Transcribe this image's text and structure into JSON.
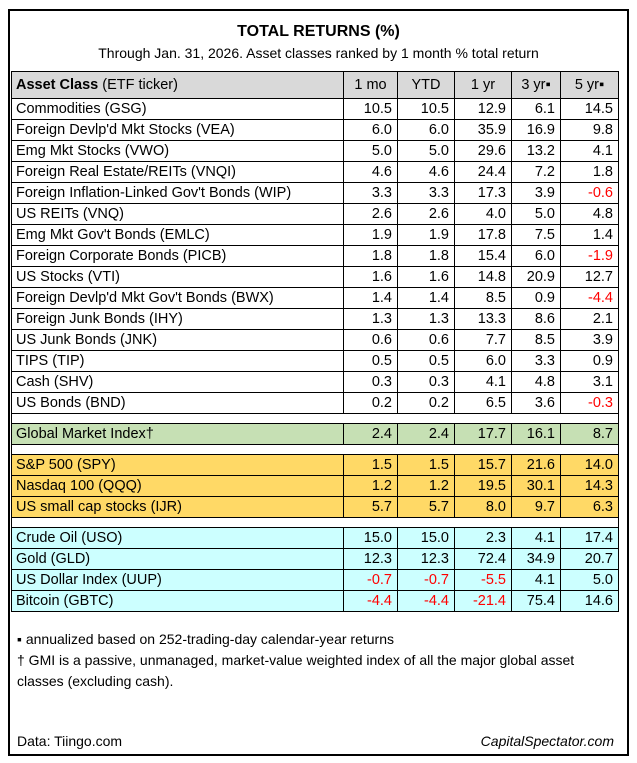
{
  "title": "TOTAL RETURNS (%)",
  "subtitle": "Through Jan. 31, 2026. Asset classes ranked by 1 month % total return",
  "chart_data": {
    "type": "table",
    "title": "TOTAL RETURNS (%)",
    "subtitle": "Through Jan. 31, 2026. Asset classes ranked by 1 month % total return",
    "asset_header": {
      "bold": "Asset Class",
      "rest": " (ETF ticker)"
    },
    "columns": [
      "1 mo",
      "YTD",
      "1 yr",
      "3 yr▪",
      "5 yr▪"
    ],
    "sections": [
      {
        "name": "ranked-asset-classes",
        "bg": "#ffffff",
        "rows": [
          {
            "label": "Commodities (GSG)",
            "values": [
              "10.5",
              "10.5",
              "12.9",
              "6.1",
              "14.5"
            ]
          },
          {
            "label": "Foreign Devlp'd Mkt Stocks (VEA)",
            "values": [
              "6.0",
              "6.0",
              "35.9",
              "16.9",
              "9.8"
            ]
          },
          {
            "label": "Emg Mkt Stocks (VWO)",
            "values": [
              "5.0",
              "5.0",
              "29.6",
              "13.2",
              "4.1"
            ]
          },
          {
            "label": "Foreign Real Estate/REITs (VNQI)",
            "values": [
              "4.6",
              "4.6",
              "24.4",
              "7.2",
              "1.8"
            ]
          },
          {
            "label": "Foreign Inflation-Linked Gov't Bonds (WIP)",
            "values": [
              "3.3",
              "3.3",
              "17.3",
              "3.9",
              "-0.6"
            ]
          },
          {
            "label": "US REITs (VNQ)",
            "values": [
              "2.6",
              "2.6",
              "4.0",
              "5.0",
              "4.8"
            ]
          },
          {
            "label": "Emg Mkt Gov't Bonds (EMLC)",
            "values": [
              "1.9",
              "1.9",
              "17.8",
              "7.5",
              "1.4"
            ]
          },
          {
            "label": "Foreign Corporate Bonds (PICB)",
            "values": [
              "1.8",
              "1.8",
              "15.4",
              "6.0",
              "-1.9"
            ]
          },
          {
            "label": "US Stocks (VTI)",
            "values": [
              "1.6",
              "1.6",
              "14.8",
              "20.9",
              "12.7"
            ]
          },
          {
            "label": "Foreign Devlp'd Mkt Gov't Bonds (BWX)",
            "values": [
              "1.4",
              "1.4",
              "8.5",
              "0.9",
              "-4.4"
            ]
          },
          {
            "label": "Foreign Junk Bonds (IHY)",
            "values": [
              "1.3",
              "1.3",
              "13.3",
              "8.6",
              "2.1"
            ]
          },
          {
            "label": "US Junk Bonds (JNK)",
            "values": [
              "0.6",
              "0.6",
              "7.7",
              "8.5",
              "3.9"
            ]
          },
          {
            "label": "TIPS (TIP)",
            "values": [
              "0.5",
              "0.5",
              "6.0",
              "3.3",
              "0.9"
            ]
          },
          {
            "label": "Cash (SHV)",
            "values": [
              "0.3",
              "0.3",
              "4.1",
              "4.8",
              "3.1"
            ]
          },
          {
            "label": "US Bonds (BND)",
            "values": [
              "0.2",
              "0.2",
              "6.5",
              "3.6",
              "-0.3"
            ]
          }
        ]
      },
      {
        "name": "global-market-index",
        "bg": "#c6e0b4",
        "rows": [
          {
            "label": "Global Market Index†",
            "values": [
              "2.4",
              "2.4",
              "17.7",
              "16.1",
              "8.7"
            ]
          }
        ]
      },
      {
        "name": "us-equity-benchmarks",
        "bg": "#ffd966",
        "rows": [
          {
            "label": "S&P 500 (SPY)",
            "values": [
              "1.5",
              "1.5",
              "15.7",
              "21.6",
              "14.0"
            ]
          },
          {
            "label": "Nasdaq 100 (QQQ)",
            "values": [
              "1.2",
              "1.2",
              "19.5",
              "30.1",
              "14.3"
            ]
          },
          {
            "label": "US small cap stocks (IJR)",
            "values": [
              "5.7",
              "5.7",
              "8.0",
              "9.7",
              "6.3"
            ]
          }
        ]
      },
      {
        "name": "alternatives",
        "bg": "#ccffff",
        "rows": [
          {
            "label": "Crude Oil (USO)",
            "values": [
              "15.0",
              "15.0",
              "2.3",
              "4.1",
              "17.4"
            ]
          },
          {
            "label": "Gold (GLD)",
            "values": [
              "12.3",
              "12.3",
              "72.4",
              "34.9",
              "20.7"
            ]
          },
          {
            "label": "US Dollar Index (UUP)",
            "values": [
              "-0.7",
              "-0.7",
              "-5.5",
              "4.1",
              "5.0"
            ]
          },
          {
            "label": "Bitcoin (GBTC)",
            "values": [
              "-4.4",
              "-4.4",
              "-21.4",
              "75.4",
              "14.6"
            ]
          }
        ]
      }
    ]
  },
  "footnotes": [
    "▪ annualized based on 252-trading-day calendar-year returns",
    "† GMI is a passive, unmanaged, market-value weighted index of all the major global asset classes (excluding cash)."
  ],
  "footer": {
    "left": "Data: Tiingo.com",
    "right": "CapitalSpectator.com"
  },
  "colors": {
    "negative": "#ff0000",
    "header_bg": "#d9d9d9",
    "gmi_bg": "#c6e0b4",
    "benchmark_bg": "#ffd966",
    "alternatives_bg": "#ccffff",
    "border": "#000000"
  }
}
